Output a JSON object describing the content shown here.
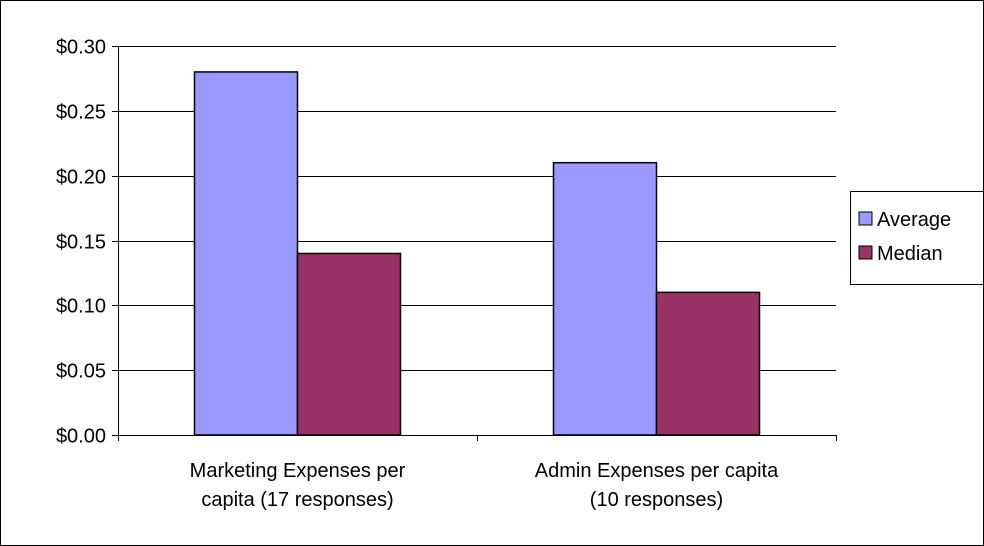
{
  "chart_data": {
    "type": "bar",
    "categories": [
      [
        "Marketing Expenses per",
        "capita (17 responses)"
      ],
      [
        "Admin Expenses per capita",
        "(10 responses)"
      ]
    ],
    "series": [
      {
        "name": "Average",
        "values": [
          0.28,
          0.21
        ],
        "color": "#9999FF"
      },
      {
        "name": "Median",
        "values": [
          0.14,
          0.11
        ],
        "color": "#993366"
      }
    ],
    "title": "",
    "xlabel": "",
    "ylabel": "",
    "ylim": [
      0,
      0.3
    ],
    "y_ticks": [
      "$0.00",
      "$0.05",
      "$0.10",
      "$0.15",
      "$0.20",
      "$0.25",
      "$0.30"
    ],
    "grid": true,
    "legend_position": "right"
  }
}
